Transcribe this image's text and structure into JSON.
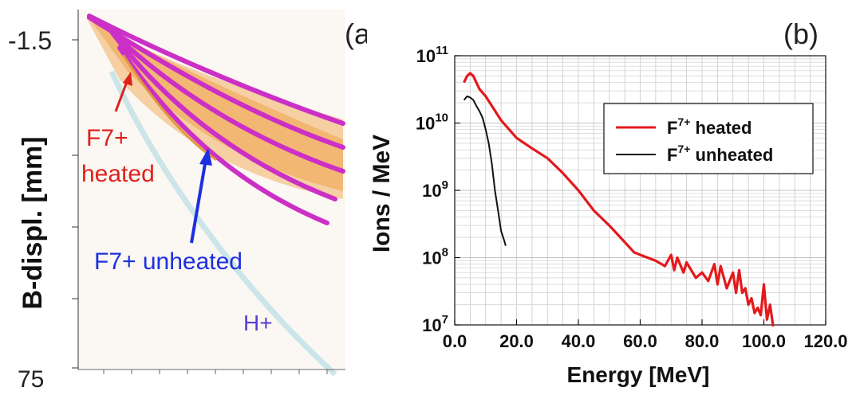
{
  "panel_a": {
    "label": "(a)",
    "ylabel": "B-displ.  [mm]",
    "tick_top": "-1.5",
    "tick_bottom": "75",
    "annotations": {
      "heated_line1": "F7+",
      "heated_line2": "heated",
      "unheated": "F7+ unheated",
      "proton": "H+"
    },
    "colors": {
      "heated": "#e0201c",
      "unheated": "#1d2fe0",
      "proton": "#5a3cd0"
    }
  },
  "chart_data": {
    "type": "line",
    "panel_label": "(b)",
    "xlabel": "Energy [MeV]",
    "ylabel": "Ions / MeV",
    "xlim": [
      0,
      120
    ],
    "ylim": [
      10000000,
      100000000000
    ],
    "yscale": "log",
    "grid": true,
    "legend_position": "top-right",
    "x_tick_labels": [
      "0.0",
      "20.0",
      "40.0",
      "60.0",
      "80.0",
      "100.0",
      "120.0"
    ],
    "y_tick_labels": [
      {
        "base": "10",
        "exp": "11"
      },
      {
        "base": "10",
        "exp": "10"
      },
      {
        "base": "10",
        "exp": "9"
      },
      {
        "base": "10",
        "exp": "8"
      },
      {
        "base": "10",
        "exp": "7"
      }
    ],
    "series": [
      {
        "legend_base": "F",
        "legend_sup": "7+",
        "legend_text": " heated",
        "color": "#e3191c",
        "x": [
          3,
          4,
          5,
          6,
          7,
          8,
          10,
          12,
          15,
          20,
          25,
          30,
          35,
          40,
          45,
          50,
          55,
          58,
          60,
          65,
          68,
          70,
          71,
          72,
          74,
          75,
          78,
          80,
          82,
          84,
          85,
          86,
          88,
          90,
          91,
          92,
          93,
          94,
          95,
          96,
          97,
          98,
          99,
          100,
          101,
          102,
          103
        ],
        "y": [
          40000000000,
          50000000000,
          55000000000,
          50000000000,
          40000000000,
          32000000000,
          25000000000,
          18000000000,
          11000000000,
          6000000000,
          4200000000,
          3000000000,
          1800000000,
          1000000000,
          500000000,
          300000000,
          170000000,
          120000000,
          110000000,
          90000000,
          75000000,
          110000000,
          65000000,
          100000000,
          60000000,
          85000000,
          50000000,
          60000000,
          45000000,
          80000000,
          40000000,
          75000000,
          35000000,
          60000000,
          30000000,
          65000000,
          30000000,
          35000000,
          20000000,
          25000000,
          15000000,
          18000000,
          14000000,
          40000000,
          12000000,
          20000000,
          9500000
        ]
      },
      {
        "legend_base": "F",
        "legend_sup": "7+",
        "legend_text": " unheated",
        "color": "#111111",
        "x": [
          3,
          4,
          5,
          6,
          7,
          8,
          9,
          10,
          11,
          12,
          13,
          14,
          15,
          16,
          16.5
        ],
        "y": [
          22000000000,
          25000000000,
          24000000000,
          22000000000,
          18000000000,
          15000000000,
          12000000000,
          8000000000,
          5000000000,
          2500000000,
          1000000000,
          500000000,
          250000000,
          180000000,
          150000000
        ]
      }
    ]
  }
}
